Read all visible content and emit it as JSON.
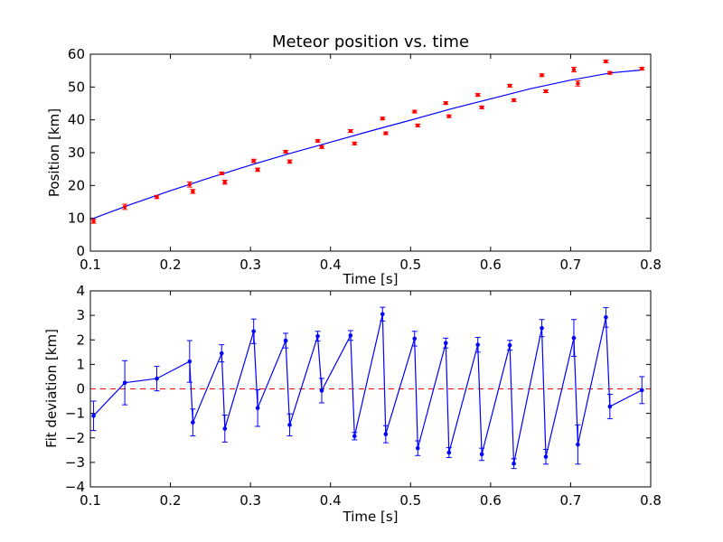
{
  "chart_data": [
    {
      "type": "scatter",
      "title": "Meteor position vs. time",
      "xlabel": "Time [s]",
      "ylabel": "Position [km]",
      "xlim": [
        0.1,
        0.8
      ],
      "ylim": [
        0,
        60
      ],
      "xticks": [
        "0.1",
        "0.2",
        "0.3",
        "0.4",
        "0.5",
        "0.6",
        "0.7",
        "0.8"
      ],
      "yticks": [
        "0",
        "10",
        "20",
        "30",
        "40",
        "50",
        "60"
      ],
      "grid": false,
      "series": [
        {
          "kind": "points-with-errorbars",
          "color": "#ff0000",
          "x": [
            0.104,
            0.143,
            0.183,
            0.224,
            0.228,
            0.264,
            0.268,
            0.304,
            0.309,
            0.344,
            0.349,
            0.384,
            0.389,
            0.425,
            0.43,
            0.465,
            0.469,
            0.505,
            0.509,
            0.544,
            0.548,
            0.584,
            0.589,
            0.624,
            0.629,
            0.664,
            0.669,
            0.704,
            0.709,
            0.744,
            0.749,
            0.789
          ],
          "y": [
            9.1,
            13.5,
            16.5,
            20.3,
            18.2,
            23.7,
            21.0,
            27.5,
            24.8,
            30.3,
            27.3,
            33.6,
            31.7,
            36.6,
            32.8,
            40.4,
            35.9,
            42.5,
            38.3,
            45.1,
            41.1,
            47.6,
            43.8,
            50.4,
            46.0,
            53.6,
            48.7,
            55.3,
            51.1,
            57.8,
            54.3,
            55.6
          ],
          "yerr": [
            0.6,
            0.8,
            0.5,
            0.8,
            0.6,
            0.4,
            0.6,
            0.5,
            0.5,
            0.4,
            0.5,
            0.4,
            0.4,
            0.4,
            0.4,
            0.4,
            0.4,
            0.4,
            0.4,
            0.4,
            0.4,
            0.4,
            0.4,
            0.4,
            0.4,
            0.4,
            0.4,
            0.7,
            0.8,
            0.4,
            0.4,
            0.4
          ]
        },
        {
          "kind": "fit-line",
          "color": "#0000ff",
          "x": [
            0.1,
            0.15,
            0.2,
            0.25,
            0.3,
            0.35,
            0.4,
            0.45,
            0.5,
            0.55,
            0.6,
            0.65,
            0.7,
            0.75,
            0.79
          ],
          "y": [
            9.6,
            14.2,
            18.4,
            22.4,
            26.2,
            29.8,
            33.2,
            36.6,
            39.9,
            43.3,
            46.4,
            49.5,
            52.1,
            54.3,
            55.2
          ]
        }
      ]
    },
    {
      "type": "line",
      "xlabel": "Time [s]",
      "ylabel": "Fit deviation [km]",
      "xlim": [
        0.1,
        0.8
      ],
      "ylim": [
        -4,
        4
      ],
      "xticks": [
        "0.1",
        "0.2",
        "0.3",
        "0.4",
        "0.5",
        "0.6",
        "0.7",
        "0.8"
      ],
      "yticks": [
        "−4",
        "−3",
        "−2",
        "−1",
        "0",
        "1",
        "2",
        "3",
        "4"
      ],
      "grid": false,
      "reference_line": {
        "y": 0,
        "color": "#ff0000",
        "style": "dashed"
      },
      "series": [
        {
          "kind": "line-with-markers-errorbars",
          "color": "#0000ff",
          "x": [
            0.104,
            0.143,
            0.183,
            0.224,
            0.228,
            0.264,
            0.268,
            0.304,
            0.309,
            0.344,
            0.349,
            0.384,
            0.389,
            0.425,
            0.43,
            0.465,
            0.469,
            0.505,
            0.509,
            0.544,
            0.548,
            0.584,
            0.589,
            0.624,
            0.629,
            0.664,
            0.669,
            0.704,
            0.709,
            0.744,
            0.749,
            0.789
          ],
          "y": [
            -1.1,
            0.25,
            0.42,
            1.12,
            -1.37,
            1.45,
            -1.62,
            2.35,
            -0.78,
            1.97,
            -1.47,
            2.15,
            -0.07,
            2.18,
            -1.93,
            3.05,
            -1.85,
            2.05,
            -2.42,
            1.87,
            -2.6,
            1.8,
            -2.67,
            1.78,
            -3.05,
            2.48,
            -2.77,
            2.08,
            -2.27,
            2.92,
            -0.72,
            -0.05
          ],
          "yerr": [
            0.6,
            0.9,
            0.5,
            0.85,
            0.55,
            0.35,
            0.55,
            0.5,
            0.75,
            0.3,
            0.45,
            0.2,
            0.5,
            0.2,
            0.15,
            0.28,
            0.35,
            0.3,
            0.3,
            0.2,
            0.2,
            0.3,
            0.25,
            0.2,
            0.2,
            0.35,
            0.3,
            0.75,
            0.8,
            0.4,
            0.5,
            0.55
          ]
        }
      ]
    }
  ]
}
